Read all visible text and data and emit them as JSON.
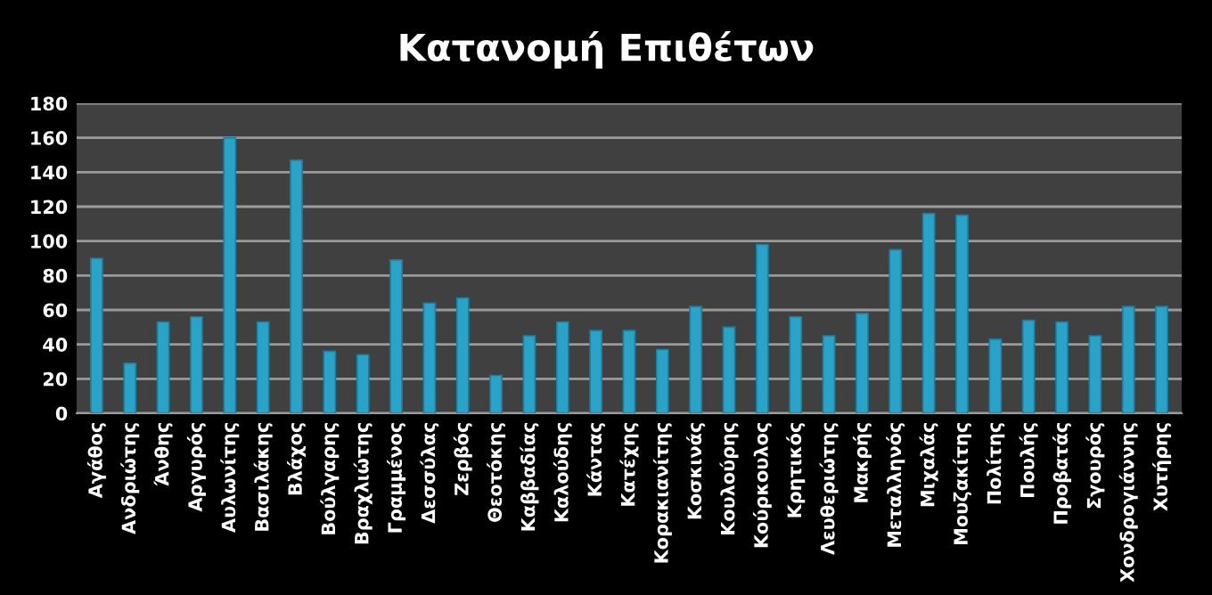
{
  "chart_data": {
    "type": "bar",
    "title": "Κατανομή Επιθέτων",
    "categories": [
      "Αγάθος",
      "Ανδριώτης",
      "Άνθης",
      "Αργυρός",
      "Αυλωνίτης",
      "Βασιλάκης",
      "Βλάχος",
      "Βούλγαρης",
      "Βραχλιώτης",
      "Γραμμένος",
      "Δεσσύλας",
      "Ζερβός",
      "Θεοτόκης",
      "Καββαδίας",
      "Καλούδης",
      "Κάντας",
      "Κατέχης",
      "Κορακιανίτης",
      "Κοσκινάς",
      "Κουλούρης",
      "Κούρκουλος",
      "Κρητικός",
      "Λευθεριώτης",
      "Μακρής",
      "Μεταλληνός",
      "Μιχαλάς",
      "Μουζακίτης",
      "Πολίτης",
      "Πουλής",
      "Προβατάς",
      "Σγουρός",
      "Χονδρογιάννης",
      "Χυτήρης"
    ],
    "values": [
      90,
      29,
      53,
      56,
      160,
      53,
      147,
      36,
      34,
      89,
      64,
      67,
      22,
      45,
      53,
      48,
      48,
      37,
      62,
      50,
      98,
      56,
      45,
      58,
      95,
      116,
      115,
      43,
      54,
      53,
      45,
      62,
      62
    ],
    "color": "#2aa3c8",
    "ylim": [
      0,
      180
    ],
    "yticks": [
      0,
      20,
      40,
      60,
      80,
      100,
      120,
      140,
      160,
      180
    ],
    "grid": "y"
  }
}
